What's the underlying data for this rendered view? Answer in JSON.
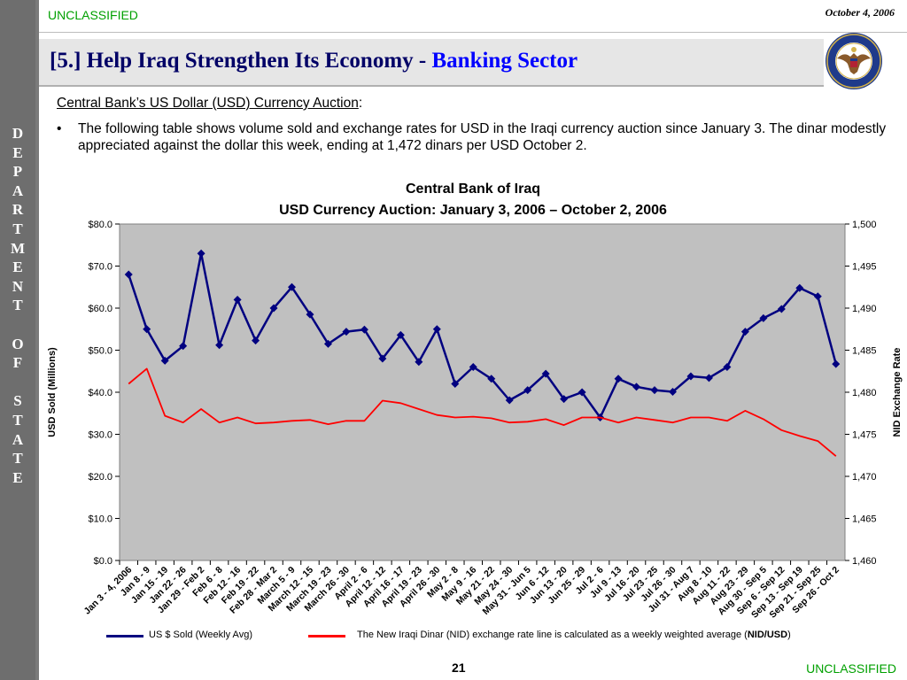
{
  "header": {
    "classification": "UNCLASSIFIED",
    "date": "October 4, 2006",
    "title_main": "[5.] Help Iraq Strengthen Its Economy - ",
    "title_accent": "Banking Sector",
    "seal_icon": "department-of-state-seal-icon"
  },
  "sidebar": {
    "letters": [
      "D",
      "E",
      "P",
      "A",
      "R",
      "T",
      "M",
      "E",
      "N",
      "T",
      "",
      "O",
      "F",
      "",
      "S",
      "T",
      "A",
      "T",
      "E"
    ]
  },
  "body": {
    "subhead": "Central Bank’s US Dollar (USD) Currency Auction",
    "subhead_colon": ":",
    "bullet_mark": "•",
    "bullet_text": "The following table shows volume sold and exchange rates for USD in the Iraqi currency auction since January 3.  The dinar modestly appreciated against the dollar this week, ending at 1,472 dinars per USD October 2."
  },
  "chart_data": {
    "type": "line",
    "title": "Central Bank of Iraq",
    "subtitle": "USD Currency Auction: January 3, 2006 – October 2, 2006",
    "ylabel": "USD Sold (Millions)",
    "y2label": "NID Exchange Rate",
    "ylim": [
      0,
      80
    ],
    "y2lim": [
      1460,
      1500
    ],
    "y_ticks": [
      "$0.0",
      "$10.0",
      "$20.0",
      "$30.0",
      "$40.0",
      "$50.0",
      "$60.0",
      "$70.0",
      "$80.0"
    ],
    "y2_ticks": [
      "1,460",
      "1,465",
      "1,470",
      "1,475",
      "1,480",
      "1,485",
      "1,490",
      "1,495",
      "1,500"
    ],
    "grid": false,
    "plot_bg": "#c0c0c0",
    "categories": [
      "Jan 3 - 4, 2006",
      "Jan 8 - 9",
      "Jan 15 - 19",
      "Jan 22 - 26",
      "Jan 29 - Feb 2",
      "Feb 6 - 8",
      "Feb 12 - 16",
      "Feb 19 - 22",
      "Feb 28 - Mar 2",
      "March 5 - 9",
      "March 12 - 15",
      "March 19 - 23",
      "March 26 - 30",
      "April 2 - 6",
      "April 12 - 12",
      "April 16 - 17",
      "April 19 - 23",
      "April 26 - 30",
      "May 2 - 8",
      "May 9 - 16",
      "May 21 - 22",
      "May 24 - 30",
      "May 31 - Jun 5",
      "Jun 6 - 12",
      "Jun 13 - 20",
      "Jun 25 - 29",
      "Jul 2 - 6",
      "Jul 9 - 13",
      "Jul 16 - 20",
      "Jul 23 - 25",
      "Jul 26 - 30",
      "Jul 31 - Aug 7",
      "Aug 8 - 10",
      "Aug 11 - 22",
      "Aug 23 - 29",
      "Aug 30 - Sep 5",
      "Sep 6 - Sep 12",
      "Sep 13 - Sep 19",
      "Sep 21 - Sep 25",
      "Sep 26 - Oct 2"
    ],
    "series": [
      {
        "name": "US $ Sold (Weekly Avg)",
        "axis": "left",
        "color": "#000080",
        "marker": "diamond",
        "values": [
          68.0,
          55.0,
          47.5,
          51.0,
          73.0,
          51.2,
          62.0,
          52.3,
          60.0,
          65.0,
          58.5,
          51.5,
          54.4,
          54.9,
          48.0,
          53.6,
          47.2,
          55.0,
          42.0,
          46.0,
          43.2,
          38.1,
          40.5,
          44.4,
          38.4,
          40.0,
          34.0,
          43.2,
          41.3,
          40.5,
          40.1,
          43.8,
          43.4,
          46.0,
          54.4,
          57.6,
          59.8,
          64.8,
          62.8,
          46.7
        ]
      },
      {
        "name": "The New Iraqi Dinar (NID) exchange rate line is calculated as a weekly weighted average (",
        "axis": "right",
        "color": "#ff0000",
        "values": [
          1481.0,
          1482.8,
          1477.2,
          1476.4,
          1478.0,
          1476.4,
          1477.0,
          1476.3,
          1476.4,
          1476.6,
          1476.7,
          1476.2,
          1476.6,
          1476.6,
          1479.0,
          1478.7,
          1478.0,
          1477.3,
          1477.0,
          1477.1,
          1476.9,
          1476.4,
          1476.5,
          1476.8,
          1476.1,
          1477.0,
          1477.0,
          1476.4,
          1477.0,
          1476.7,
          1476.4,
          1477.0,
          1477.0,
          1476.6,
          1477.8,
          1476.8,
          1475.5,
          1474.8,
          1474.2,
          1472.4
        ]
      }
    ],
    "legend_position": "bottom",
    "legend_note_bold": "NID/USD",
    "legend_note_close": ")"
  },
  "footer": {
    "page_number": "21",
    "classification": "UNCLASSIFIED"
  }
}
